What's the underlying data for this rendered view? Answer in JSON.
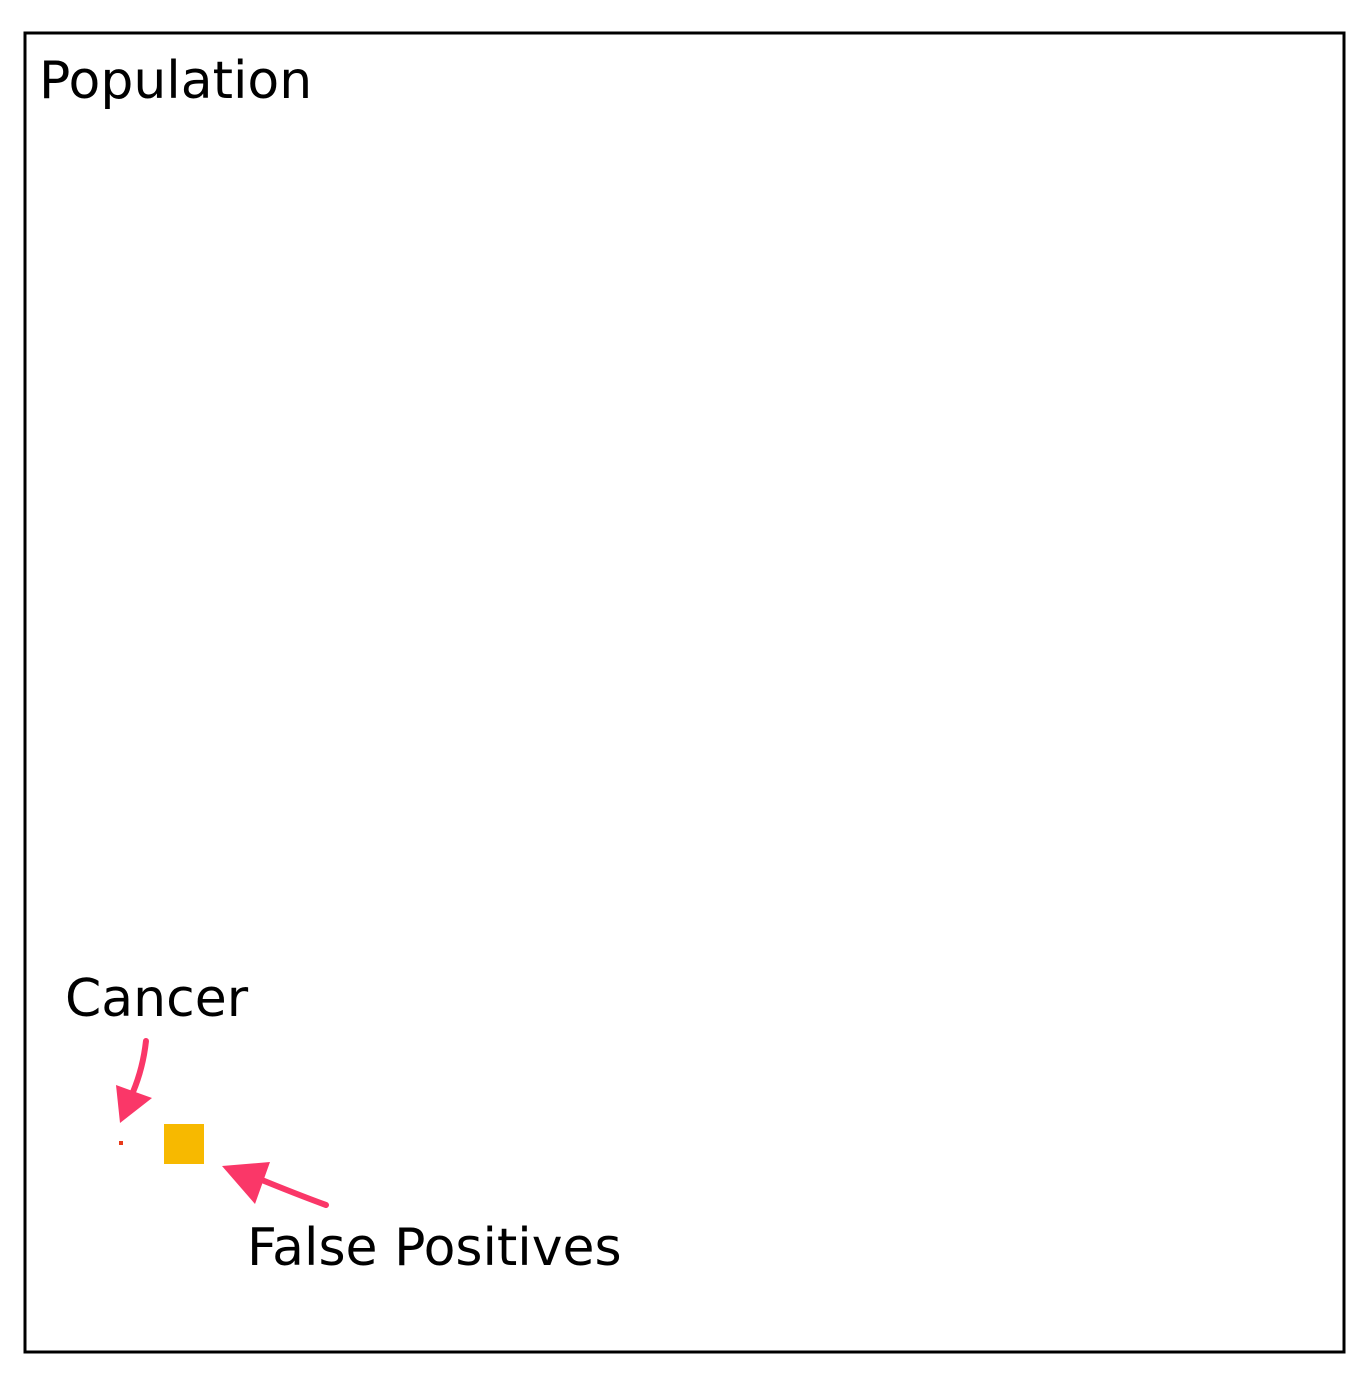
{
  "population": {
    "label": "Population"
  },
  "cancer": {
    "label": "Cancer",
    "color": "#e8391a"
  },
  "false_positives": {
    "label": "False Positives",
    "color": "#f7b900"
  },
  "arrow_color": "#fa3768"
}
